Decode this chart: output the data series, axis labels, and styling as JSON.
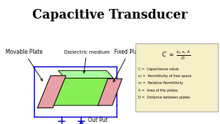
{
  "title": "Capacitive Transducer",
  "title_bg": "#FFFF00",
  "main_bg": "#FFFFFF",
  "movable_plate_label": "Movable Plate",
  "dielectric_label": "Dielectric medium",
  "fixed_plate_label": "Fixed Plate",
  "output_label": "Out Put",
  "formula_bg": "#F5F0C8",
  "formula_border": "#AAAAAA",
  "legend_lines": [
    "C =  Capacitance value",
    "ε₀ =  Permittivity of free space",
    "εr =  Relative Permittivity",
    "A =  Area of the plates",
    "D =  Distance between plates"
  ],
  "plate_color": "#E8A0A8",
  "dielectric_color": "#88EE55",
  "circuit_color": "#0000CC",
  "text_color": "#000000",
  "title_fontsize": 13,
  "label_fontsize": 5.5
}
